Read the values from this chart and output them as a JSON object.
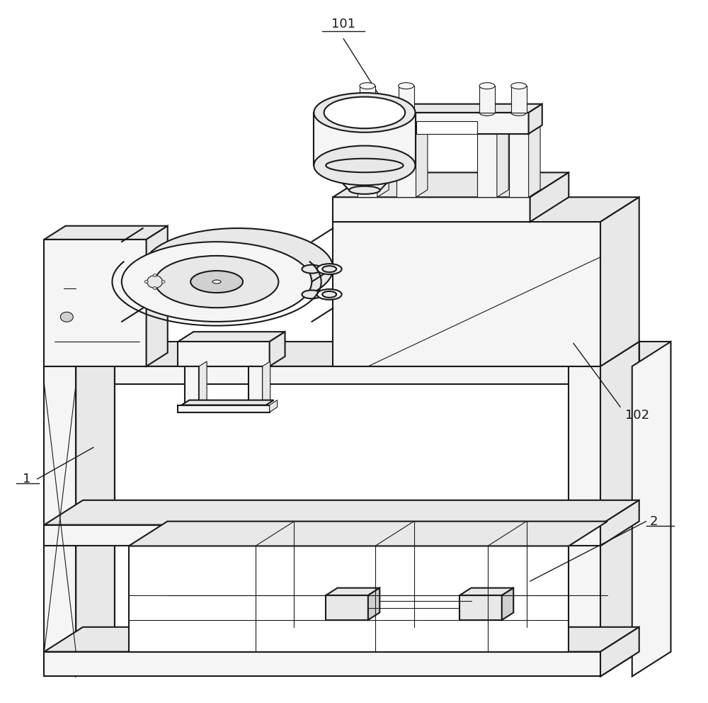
{
  "figure_width": 10.0,
  "figure_height": 9.92,
  "dpi": 100,
  "bg_color": "#ffffff",
  "line_color": "#1a1a1a",
  "lw": 1.5,
  "tlw": 0.8,
  "label_101": "101",
  "label_102": "102",
  "label_1": "1",
  "label_2": "2",
  "font_size": 13
}
